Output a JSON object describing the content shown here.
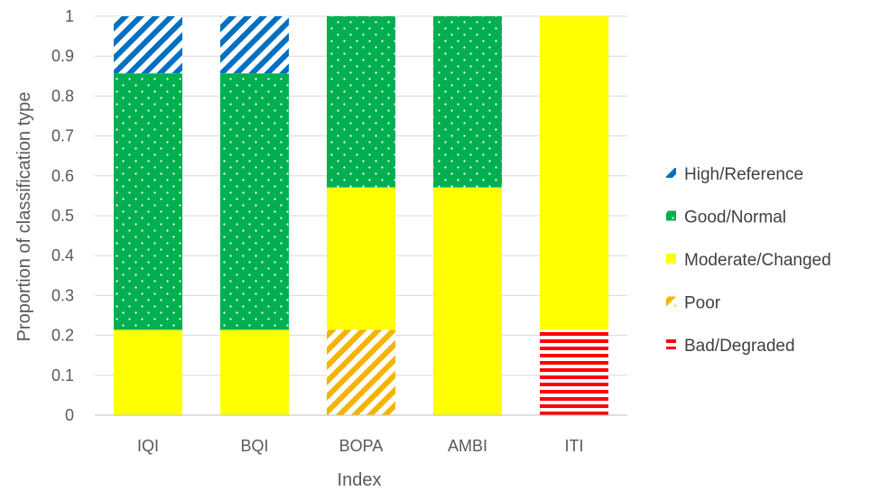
{
  "chart_data": {
    "type": "bar",
    "stacked": true,
    "xlabel": "Index",
    "ylabel": "Proportion of classification type",
    "ylim": [
      0,
      1
    ],
    "yticks": [
      "0",
      "0.1",
      "0.2",
      "0.3",
      "0.4",
      "0.5",
      "0.6",
      "0.7",
      "0.8",
      "0.9",
      "1"
    ],
    "grid": true,
    "legend_position": "right",
    "categories": [
      "IQI",
      "BQI",
      "BOPA",
      "AMBI",
      "ITI"
    ],
    "series": [
      {
        "name": "Bad/Degraded",
        "color": "#ff0000",
        "pattern": "horizontal-stripes",
        "values": [
          0,
          0,
          0,
          0,
          0.214
        ]
      },
      {
        "name": "Poor",
        "color": "#f4b400",
        "pattern": "diagonal-stripes",
        "values": [
          0,
          0,
          0.214,
          0,
          0
        ]
      },
      {
        "name": "Moderate/Changed",
        "color": "#ffff00",
        "pattern": "solid",
        "values": [
          0.214,
          0.214,
          0.357,
          0.571,
          0.786
        ]
      },
      {
        "name": "Good/Normal",
        "color": "#00b050",
        "pattern": "dots",
        "values": [
          0.643,
          0.643,
          0.429,
          0.429,
          0
        ]
      },
      {
        "name": "High/Reference",
        "color": "#0070c0",
        "pattern": "diagonal-stripes",
        "values": [
          0.143,
          0.143,
          0,
          0,
          0
        ]
      }
    ],
    "legend_order": [
      "High/Reference",
      "Good/Normal",
      "Moderate/Changed",
      "Poor",
      "Bad/Degraded"
    ]
  }
}
